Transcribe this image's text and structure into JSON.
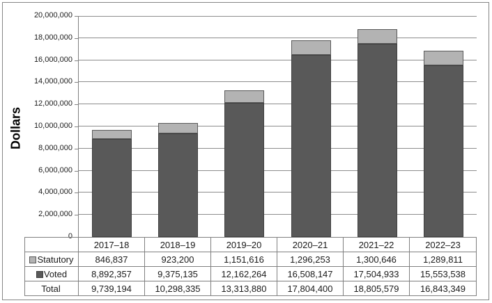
{
  "chart_data": {
    "type": "bar",
    "stacked": true,
    "title": "",
    "xlabel": "",
    "ylabel": "Dollars",
    "categories": [
      "2017–18",
      "2018–19",
      "2019–20",
      "2020–21",
      "2021–22",
      "2022–23"
    ],
    "series": [
      {
        "name": "Voted",
        "color": "#595959",
        "values": [
          8892357,
          9375135,
          12162264,
          16508147,
          17504933,
          15553538
        ]
      },
      {
        "name": "Statutory",
        "color": "#b3b3b3",
        "values": [
          846837,
          923200,
          1151616,
          1296253,
          1300646,
          1289811
        ]
      }
    ],
    "totals": [
      9739194,
      10298335,
      13313880,
      17804400,
      18805579,
      16843349
    ],
    "ylim": [
      0,
      20000000
    ],
    "ytick_step": 2000000,
    "ytick_labels": [
      "0",
      "2,000,000",
      "4,000,000",
      "6,000,000",
      "8,000,000",
      "10,000,000",
      "12,000,000",
      "14,000,000",
      "16,000,000",
      "18,000,000",
      "20,000,000"
    ],
    "grid": true,
    "legend_position": "table-row-labels"
  },
  "table": {
    "years": [
      "2017–18",
      "2018–19",
      "2019–20",
      "2020–21",
      "2021–22",
      "2022–23"
    ],
    "rows": [
      {
        "label": "Statutory",
        "values": [
          "846,837",
          "923,200",
          "1,151,616",
          "1,296,253",
          "1,300,646",
          "1,289,811"
        ]
      },
      {
        "label": "Voted",
        "values": [
          "8,892,357",
          "9,375,135",
          "12,162,264",
          "16,508,147",
          "17,504,933",
          "15,553,538"
        ]
      },
      {
        "label": "Total",
        "values": [
          "9,739,194",
          "10,298,335",
          "13,313,880",
          "17,804,400",
          "18,805,579",
          "16,843,349"
        ]
      }
    ]
  },
  "colors": {
    "voted_fill": "#595959",
    "voted_border": "#3f3f3f",
    "statutory_fill": "#b3b3b3",
    "statutory_border": "#595959",
    "gridline": "#8c8c8c",
    "axis": "#808080",
    "table_border": "#7f7f7f",
    "text": "#1a1a1a"
  }
}
